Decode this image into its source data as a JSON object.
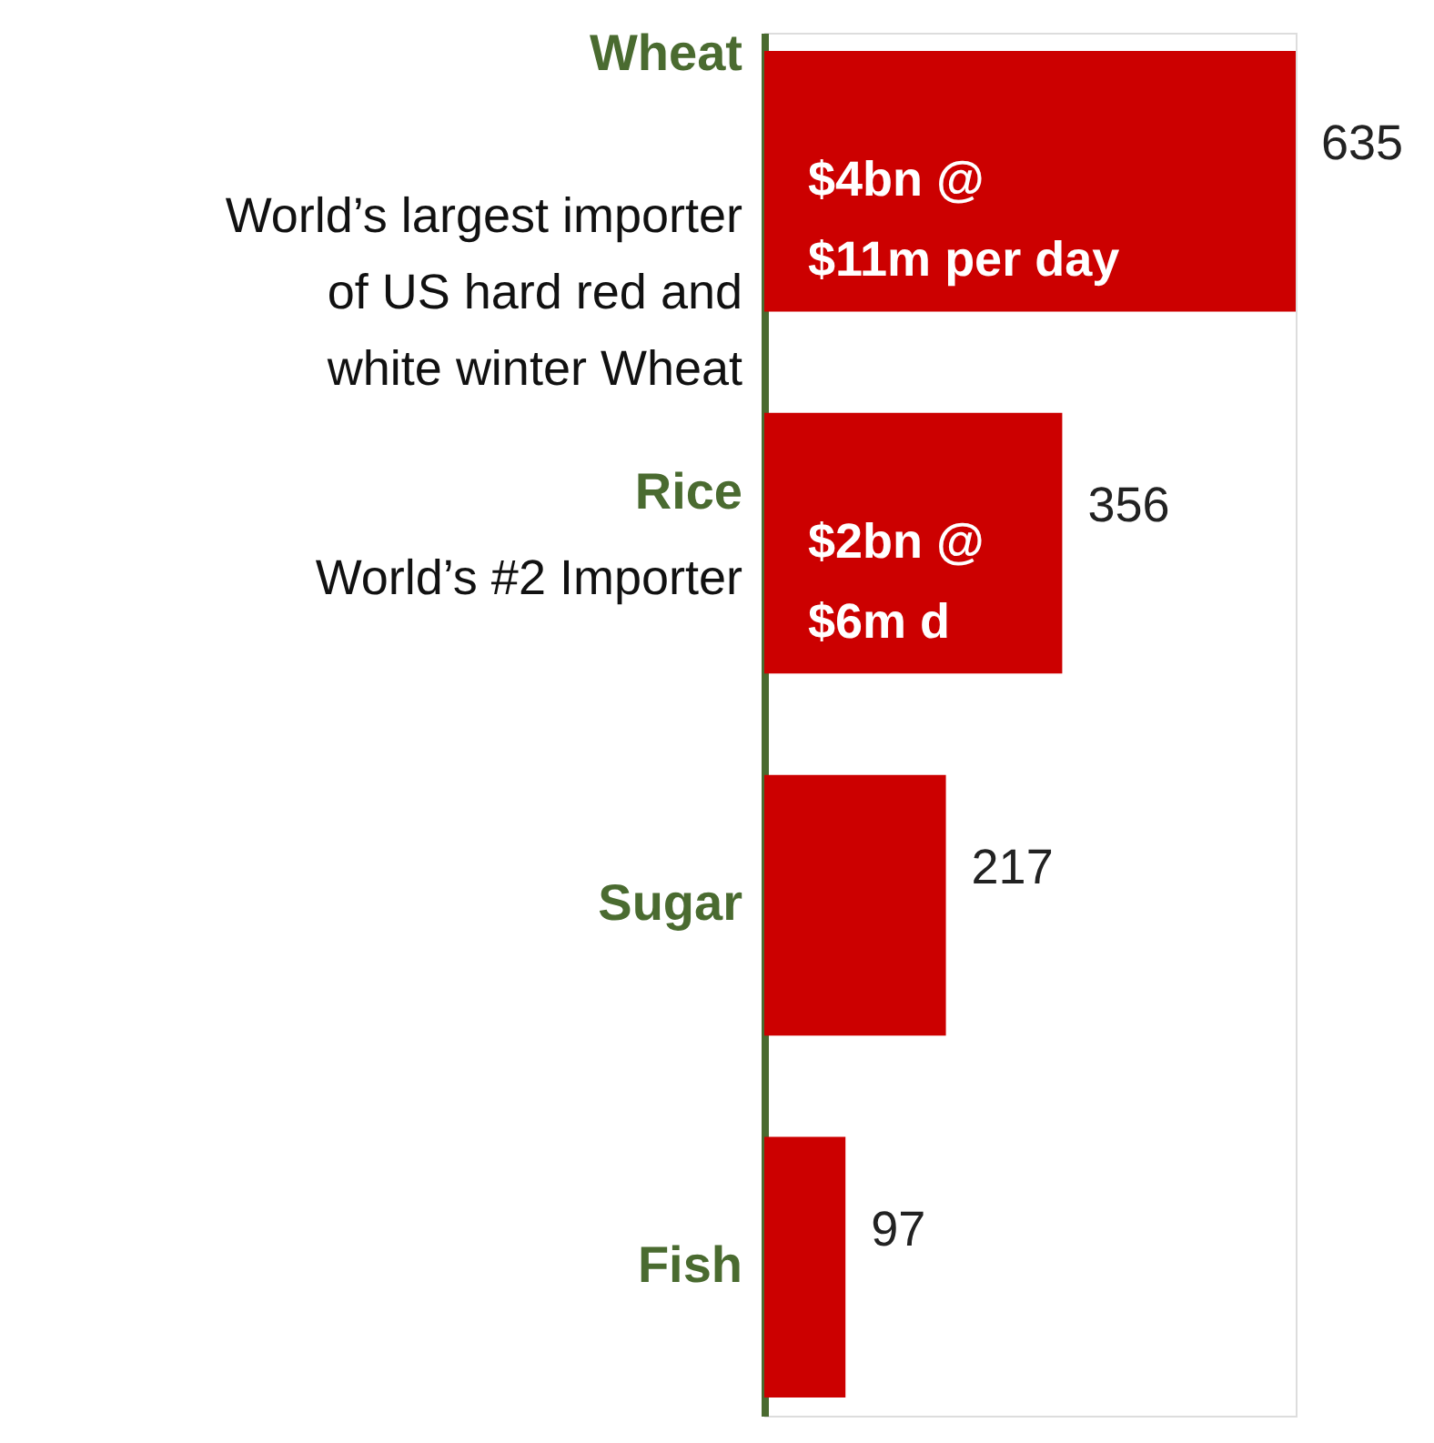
{
  "chart_data": {
    "type": "bar",
    "orientation": "horizontal",
    "categories": [
      "Wheat",
      "Rice",
      "Sugar",
      "Fish"
    ],
    "values": [
      635,
      356,
      217,
      97
    ],
    "color": "#cc0000",
    "data_labels": true,
    "annotations": [
      "World’s largest importer\nof US hard red and\nwhite winter Wheat",
      "$4bn @\n$11m per day",
      "World’s #2 Importer",
      "$2bn @\n$6m d"
    ]
  }
}
